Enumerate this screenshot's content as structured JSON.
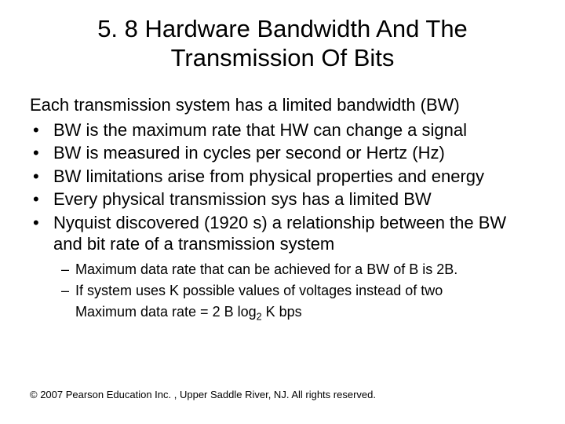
{
  "title": "5. 8 Hardware Bandwidth And The Transmission Of Bits",
  "intro": "Each transmission system has a limited bandwidth (BW)",
  "bullets": [
    "BW is the maximum rate that HW can change a signal",
    "BW is measured in cycles per second or Hertz (Hz)",
    "BW limitations arise from physical properties and energy",
    "Every physical transmission sys has a limited BW",
    "Nyquist discovered (1920 s) a relationship between the BW and bit rate of a transmission system"
  ],
  "sub": [
    "Maximum data rate that can be achieved for a BW  of B is 2B.",
    "If system uses K possible values of voltages instead of two"
  ],
  "sub_cont_prefix": "Maximum data rate = 2 B log",
  "sub_cont_sub": "2",
  "sub_cont_suffix": " K  bps",
  "footer": "© 2007 Pearson Education Inc. , Upper Saddle River, NJ. All rights reserved.",
  "colors": {
    "background": "#ffffff",
    "text": "#000000"
  },
  "typography": {
    "title_fontsize": 31,
    "body_fontsize": 22,
    "sub_fontsize": 18,
    "footer_fontsize": 13,
    "font_family": "Arial"
  }
}
